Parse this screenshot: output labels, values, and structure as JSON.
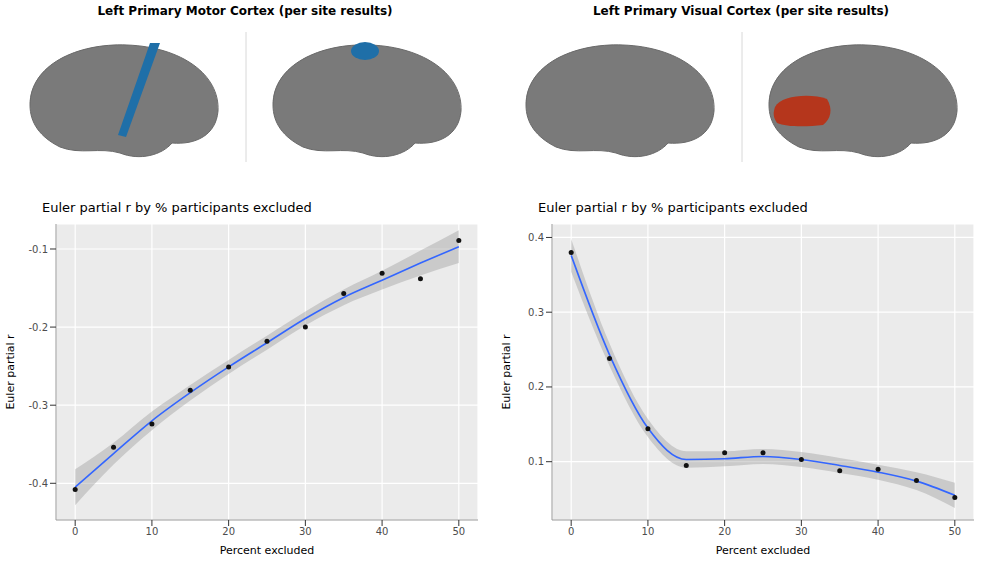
{
  "chart_data": [
    {
      "type": "scatter",
      "panel_title": "Left Primary Motor Cortex (per site results)",
      "title": "Euler partial r by % participants excluded",
      "x_label": "Percent excluded",
      "y_label": "Euler partial r",
      "x": [
        0,
        5,
        10,
        15,
        20,
        25,
        30,
        35,
        40,
        45,
        50
      ],
      "values": [
        -0.408,
        -0.354,
        -0.324,
        -0.281,
        -0.251,
        -0.218,
        -0.2,
        -0.157,
        -0.131,
        -0.138,
        -0.089
      ],
      "fit": [
        -0.405,
        -0.362,
        -0.32,
        -0.284,
        -0.251,
        -0.22,
        -0.189,
        -0.162,
        -0.14,
        -0.118,
        -0.097
      ],
      "fit_lower": [
        -0.428,
        -0.376,
        -0.332,
        -0.294,
        -0.26,
        -0.229,
        -0.198,
        -0.172,
        -0.152,
        -0.134,
        -0.118
      ],
      "fit_upper": [
        -0.382,
        -0.348,
        -0.308,
        -0.274,
        -0.242,
        -0.211,
        -0.18,
        -0.152,
        -0.128,
        -0.102,
        -0.076
      ],
      "color": "#3366ff",
      "xlim": [
        -2.5,
        52.5
      ],
      "xticks": [
        0,
        10,
        20,
        30,
        40,
        50
      ],
      "ylim": [
        -0.447,
        -0.068
      ],
      "yticks": [
        -0.4,
        -0.3,
        -0.2,
        -0.1
      ],
      "grid": true
    },
    {
      "type": "scatter",
      "panel_title": "Left Primary Visual Cortex (per site results)",
      "title": "Euler partial r by % participants excluded",
      "x_label": "Percent excluded",
      "y_label": "Euler partial r",
      "x": [
        0,
        5,
        10,
        15,
        20,
        25,
        30,
        35,
        40,
        45,
        50
      ],
      "values": [
        0.38,
        0.238,
        0.144,
        0.095,
        0.112,
        0.112,
        0.103,
        0.088,
        0.09,
        0.075,
        0.052
      ],
      "fit": [
        0.376,
        0.243,
        0.145,
        0.103,
        0.104,
        0.107,
        0.103,
        0.095,
        0.086,
        0.074,
        0.055
      ],
      "fit_lower": [
        0.354,
        0.228,
        0.133,
        0.092,
        0.094,
        0.097,
        0.093,
        0.085,
        0.076,
        0.062,
        0.038
      ],
      "fit_upper": [
        0.398,
        0.258,
        0.157,
        0.114,
        0.114,
        0.117,
        0.113,
        0.105,
        0.096,
        0.086,
        0.072
      ],
      "color": "#3366ff",
      "xlim": [
        -2.5,
        52.5
      ],
      "xticks": [
        0,
        10,
        20,
        30,
        40,
        50
      ],
      "ylim": [
        0.022,
        0.418
      ],
      "yticks": [
        0.1,
        0.2,
        0.3,
        0.4
      ],
      "grid": true
    }
  ]
}
